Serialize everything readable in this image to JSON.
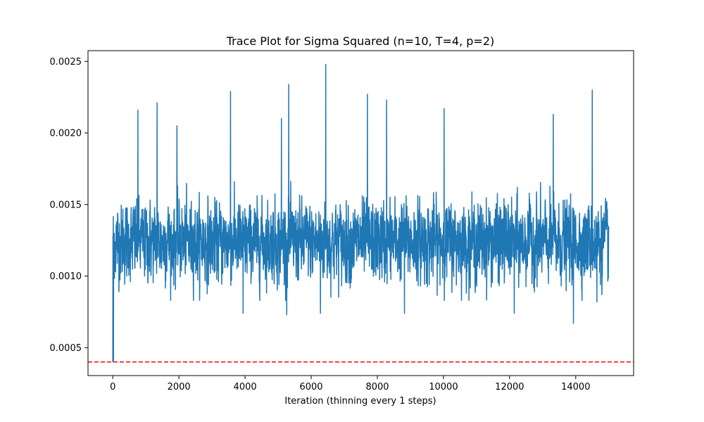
{
  "chart_data": {
    "type": "line",
    "title": "Trace Plot for Sigma Squared (n=10, T=4, p=2)",
    "xlabel": "Iteration (thinning every 1 steps)",
    "ylabel": "",
    "xlim": [
      -750,
      15750
    ],
    "ylim": [
      0.000305,
      0.002575
    ],
    "x_ticks": [
      0,
      2000,
      4000,
      6000,
      8000,
      10000,
      12000,
      14000
    ],
    "x_tick_labels": [
      "0",
      "2000",
      "4000",
      "6000",
      "8000",
      "10000",
      "12000",
      "14000"
    ],
    "y_ticks": [
      0.0005,
      0.001,
      0.0015,
      0.002,
      0.0025
    ],
    "y_tick_labels": [
      "0.0005",
      "0.0010",
      "0.0015",
      "0.0020",
      "0.0025"
    ],
    "grid": false,
    "legend": "none",
    "series": [
      {
        "color": "#1f77b4",
        "line_style": "solid",
        "x_range": [
          0,
          15000
        ],
        "initial_value": 0.0004,
        "typical_range": [
          0.0009,
          0.0017
        ],
        "extremes": [
          {
            "x": 20,
            "y": 0.0004
          },
          {
            "x": 760,
            "y": 0.00216
          },
          {
            "x": 1340,
            "y": 0.00221
          },
          {
            "x": 1940,
            "y": 0.00205
          },
          {
            "x": 3560,
            "y": 0.00229
          },
          {
            "x": 3940,
            "y": 0.00074
          },
          {
            "x": 5100,
            "y": 0.0021
          },
          {
            "x": 5260,
            "y": 0.00073
          },
          {
            "x": 5320,
            "y": 0.00234
          },
          {
            "x": 6280,
            "y": 0.00074
          },
          {
            "x": 6440,
            "y": 0.00248
          },
          {
            "x": 7700,
            "y": 0.00227
          },
          {
            "x": 8280,
            "y": 0.00223
          },
          {
            "x": 8820,
            "y": 0.00074
          },
          {
            "x": 10020,
            "y": 0.00217
          },
          {
            "x": 12140,
            "y": 0.00074
          },
          {
            "x": 13320,
            "y": 0.00213
          },
          {
            "x": 13930,
            "y": 0.00067
          },
          {
            "x": 14500,
            "y": 0.0023
          },
          {
            "x": 14640,
            "y": 0.00082
          }
        ]
      }
    ],
    "reference_line": {
      "y": 0.0004,
      "color": "#ff0000",
      "style": "dashed"
    }
  }
}
